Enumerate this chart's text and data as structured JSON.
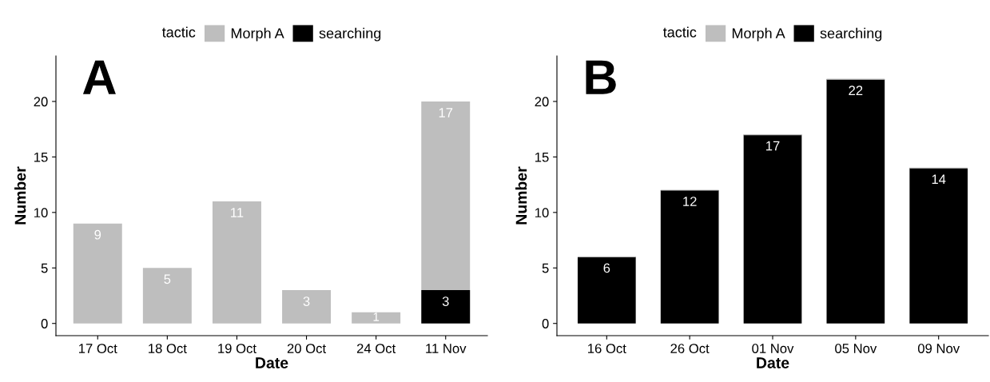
{
  "chart_data": [
    {
      "type": "bar",
      "stacked": true,
      "xlabel": "Date",
      "ylabel": "Number",
      "legend_title": "tactic",
      "legend": "top",
      "annotations": [
        "A"
      ],
      "categories": [
        "17 Oct",
        "18 Oct",
        "19 Oct",
        "20 Oct",
        "24 Oct",
        "11 Nov"
      ],
      "ylim": [
        -1.1,
        24.1
      ],
      "yticks": [
        0,
        5,
        10,
        15,
        20
      ],
      "grid": false,
      "series": [
        {
          "name": "searching",
          "color": "#000000",
          "values": [
            null,
            null,
            null,
            null,
            null,
            3
          ],
          "value_labels": [
            null,
            null,
            null,
            null,
            null,
            "3"
          ]
        },
        {
          "name": "Morph A",
          "color": "#bebebe",
          "values": [
            9,
            5,
            11,
            3,
            1,
            17
          ],
          "value_labels": [
            "9",
            "5",
            "11",
            "3",
            "1",
            "17"
          ]
        }
      ]
    },
    {
      "type": "bar",
      "stacked": true,
      "xlabel": "Date",
      "ylabel": "Number",
      "legend_title": "tactic",
      "legend": "top",
      "annotations": [
        "B"
      ],
      "categories": [
        "16 Oct",
        "26 Oct",
        "01 Nov",
        "05 Nov",
        "09 Nov"
      ],
      "ylim": [
        -1.1,
        24.1
      ],
      "yticks": [
        0,
        5,
        10,
        15,
        20
      ],
      "grid": false,
      "series": [
        {
          "name": "searching",
          "color": "#000000",
          "values": [
            6,
            12,
            17,
            22,
            14
          ],
          "value_labels": [
            "6",
            "12",
            "17",
            "22",
            "14"
          ]
        },
        {
          "name": "Morph A",
          "color": "#bebebe",
          "values": [
            0,
            0,
            0,
            0,
            0
          ],
          "value_labels": [
            null,
            null,
            null,
            null,
            null
          ]
        }
      ]
    }
  ]
}
